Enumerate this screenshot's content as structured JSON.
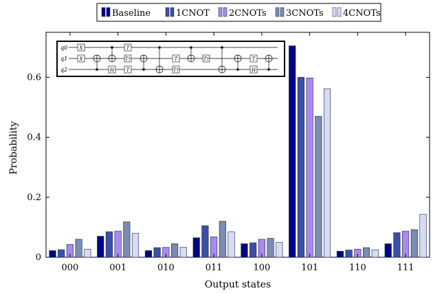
{
  "chart_data": {
    "type": "bar",
    "xlabel": "Output states",
    "ylabel": "Probability",
    "ylim": [
      0,
      0.75
    ],
    "yticks": [
      "0",
      "0.2",
      "0.4",
      "0.6"
    ],
    "ytick_values": [
      0,
      0.2,
      0.4,
      0.6
    ],
    "grid": false,
    "legend_position": "top-center",
    "categories": [
      "000",
      "001",
      "010",
      "011",
      "100",
      "101",
      "110",
      "111"
    ],
    "series": [
      {
        "name": "Baseline",
        "color": "#00008b",
        "values": [
          0.022,
          0.07,
          0.022,
          0.065,
          0.045,
          0.705,
          0.02,
          0.045
        ]
      },
      {
        "name": "1CNOT",
        "color": "#3a50a8",
        "values": [
          0.025,
          0.085,
          0.032,
          0.105,
          0.048,
          0.6,
          0.024,
          0.082
        ]
      },
      {
        "name": "2CNOTs",
        "color": "#a78bef",
        "values": [
          0.043,
          0.087,
          0.033,
          0.068,
          0.06,
          0.598,
          0.027,
          0.087
        ]
      },
      {
        "name": "3CNOTs",
        "color": "#7a8cb4",
        "values": [
          0.06,
          0.118,
          0.045,
          0.12,
          0.063,
          0.47,
          0.032,
          0.092
        ]
      },
      {
        "name": "4CNOTs",
        "color": "#d6dcf6",
        "values": [
          0.027,
          0.08,
          0.033,
          0.085,
          0.05,
          0.562,
          0.025,
          0.143
        ]
      }
    ]
  },
  "circuit": {
    "qubits": [
      "q0",
      "q1",
      "q2"
    ],
    "gates": {
      "x": "X",
      "h": "H",
      "t": "T",
      "tdg": "T†"
    }
  }
}
